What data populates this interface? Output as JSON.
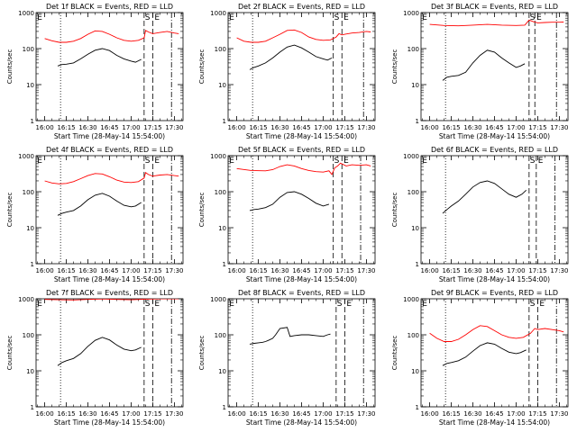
{
  "y_ticks": [
    "1",
    "10",
    "100",
    "1000"
  ],
  "x_ticks": [
    "16:00",
    "16:15",
    "16:30",
    "16:45",
    "17:00",
    "17:15",
    "17:30"
  ],
  "letters": [
    "E",
    "S",
    "E"
  ],
  "chart_data": [
    {
      "type": "line",
      "title": "Det 1f BLACK = Events, RED = LLD",
      "xlabel": "Start Time (28-May-14 15:54:00)",
      "ylabel": "Counts/sec",
      "x_unit": "minutes after 16:00",
      "xlim": [
        -6,
        96
      ],
      "ylim": [
        1,
        1000
      ],
      "y_scale": "log",
      "event_lines": [
        {
          "style": "dotted",
          "x": 11
        },
        {
          "style": "dashed",
          "x": 69
        },
        {
          "style": "dashed",
          "x": 75
        },
        {
          "style": "dashdot",
          "x": 88
        }
      ],
      "series": [
        {
          "color": "#ff0000",
          "x": [
            0,
            5,
            10,
            15,
            20,
            25,
            30,
            35,
            40,
            45,
            50,
            55,
            60,
            65,
            69,
            70,
            72,
            75,
            80,
            85,
            90,
            93
          ],
          "y": [
            190,
            165,
            150,
            150,
            160,
            190,
            250,
            310,
            300,
            250,
            200,
            170,
            160,
            170,
            200,
            320,
            290,
            260,
            280,
            300,
            270,
            260
          ]
        },
        {
          "color": "#000000",
          "x": [
            9,
            12,
            15,
            20,
            25,
            30,
            35,
            40,
            45,
            50,
            55,
            60,
            63,
            67
          ],
          "y": [
            33,
            36,
            37,
            40,
            52,
            70,
            90,
            100,
            88,
            65,
            52,
            45,
            42,
            50
          ]
        }
      ]
    },
    {
      "type": "line",
      "title": "Det 2f BLACK = Events, RED = LLD",
      "xlabel": "Start Time (28-May-14 15:54:00)",
      "ylabel": "Counts/sec",
      "x_unit": "minutes after 16:00",
      "xlim": [
        -6,
        96
      ],
      "ylim": [
        1,
        1000
      ],
      "y_scale": "log",
      "event_lines": [
        {
          "style": "dotted",
          "x": 11
        },
        {
          "style": "dashed",
          "x": 67
        },
        {
          "style": "dashed",
          "x": 73
        },
        {
          "style": "dashdot",
          "x": 88
        }
      ],
      "series": [
        {
          "color": "#ff0000",
          "x": [
            0,
            5,
            10,
            15,
            20,
            25,
            30,
            35,
            40,
            45,
            50,
            55,
            60,
            65,
            69,
            71,
            73,
            75,
            80,
            85,
            90,
            93
          ],
          "y": [
            200,
            160,
            150,
            150,
            160,
            200,
            250,
            320,
            330,
            280,
            210,
            180,
            170,
            175,
            210,
            260,
            240,
            250,
            270,
            280,
            300,
            290
          ]
        },
        {
          "color": "#000000",
          "x": [
            9,
            12,
            15,
            20,
            25,
            30,
            35,
            40,
            45,
            50,
            55,
            60,
            63,
            66
          ],
          "y": [
            26,
            30,
            33,
            40,
            55,
            80,
            110,
            125,
            105,
            80,
            60,
            52,
            48,
            55
          ]
        }
      ]
    },
    {
      "type": "line",
      "title": "Det 3f BLACK = Events, RED = LLD",
      "xlabel": "Start Time (28-May-14 15:54:00)",
      "ylabel": "Counts/sec",
      "x_unit": "minutes after 16:00",
      "xlim": [
        -6,
        96
      ],
      "ylim": [
        1,
        1000
      ],
      "y_scale": "log",
      "event_lines": [
        {
          "style": "dotted",
          "x": 11
        },
        {
          "style": "dashed",
          "x": 69
        },
        {
          "style": "dashed",
          "x": 73
        },
        {
          "style": "dashdot",
          "x": 88
        }
      ],
      "series": [
        {
          "color": "#ff0000",
          "x": [
            0,
            10,
            20,
            30,
            40,
            50,
            60,
            66,
            69,
            72,
            75,
            80,
            85,
            90,
            93
          ],
          "y": [
            470,
            440,
            430,
            450,
            470,
            450,
            440,
            450,
            620,
            560,
            520,
            530,
            540,
            540,
            545
          ]
        },
        {
          "color": "#000000",
          "x": [
            9,
            12,
            15,
            20,
            25,
            30,
            35,
            40,
            45,
            50,
            55,
            60,
            63,
            66
          ],
          "y": [
            13,
            16,
            17,
            18,
            22,
            40,
            65,
            90,
            80,
            55,
            40,
            30,
            33,
            38
          ]
        }
      ]
    },
    {
      "type": "line",
      "title": "Det 4f BLACK = Events, RED = LLD",
      "xlabel": "Start Time (28-May-14 15:54:00)",
      "ylabel": "Counts/sec",
      "x_unit": "minutes after 16:00",
      "xlim": [
        -6,
        96
      ],
      "ylim": [
        1,
        1000
      ],
      "y_scale": "log",
      "event_lines": [
        {
          "style": "dotted",
          "x": 11
        },
        {
          "style": "dashed",
          "x": 69
        },
        {
          "style": "dashed",
          "x": 75
        },
        {
          "style": "dashdot",
          "x": 88
        }
      ],
      "series": [
        {
          "color": "#ff0000",
          "x": [
            0,
            5,
            10,
            15,
            20,
            25,
            30,
            35,
            40,
            45,
            50,
            55,
            60,
            65,
            69,
            70,
            72,
            75,
            80,
            85,
            90,
            93
          ],
          "y": [
            200,
            175,
            165,
            170,
            190,
            230,
            280,
            320,
            310,
            260,
            210,
            185,
            180,
            190,
            240,
            340,
            300,
            270,
            290,
            300,
            280,
            270
          ]
        },
        {
          "color": "#000000",
          "x": [
            9,
            12,
            15,
            20,
            25,
            30,
            35,
            40,
            45,
            50,
            55,
            60,
            63,
            67
          ],
          "y": [
            22,
            25,
            27,
            30,
            40,
            60,
            80,
            90,
            75,
            55,
            42,
            38,
            40,
            50
          ]
        }
      ]
    },
    {
      "type": "line",
      "title": "Det 5f BLACK = Events, RED = LLD",
      "xlabel": "Start Time (28-May-14 15:54:00)",
      "ylabel": "Counts/sec",
      "x_unit": "minutes after 16:00",
      "xlim": [
        -6,
        96
      ],
      "ylim": [
        1,
        1000
      ],
      "y_scale": "log",
      "event_lines": [
        {
          "style": "dotted",
          "x": 11
        },
        {
          "style": "dashed",
          "x": 67
        },
        {
          "style": "dashed",
          "x": 73
        },
        {
          "style": "dashdot",
          "x": 86
        }
      ],
      "series": [
        {
          "color": "#ff0000",
          "x": [
            0,
            10,
            20,
            25,
            30,
            35,
            40,
            45,
            50,
            55,
            60,
            64,
            66,
            68,
            70,
            72,
            76,
            80,
            85,
            90,
            93
          ],
          "y": [
            440,
            390,
            380,
            410,
            500,
            560,
            520,
            440,
            390,
            360,
            350,
            380,
            300,
            460,
            520,
            620,
            520,
            560,
            540,
            560,
            520
          ]
        },
        {
          "color": "#000000",
          "x": [
            9,
            12,
            15,
            20,
            25,
            30,
            35,
            40,
            45,
            50,
            55,
            60,
            64
          ],
          "y": [
            30,
            32,
            33,
            36,
            45,
            70,
            95,
            100,
            85,
            65,
            48,
            40,
            45
          ]
        }
      ]
    },
    {
      "type": "line",
      "title": "Det 6f BLACK = Events, RED = LLD",
      "xlabel": "Start Time (28-May-14 15:54:00)",
      "ylabel": "Counts/sec",
      "x_unit": "minutes after 16:00",
      "xlim": [
        -6,
        96
      ],
      "ylim": [
        1,
        1000
      ],
      "y_scale": "log",
      "event_lines": [
        {
          "style": "dotted",
          "x": 11
        },
        {
          "style": "dashed",
          "x": 69
        },
        {
          "style": "dashed",
          "x": 74
        },
        {
          "style": "dashdot",
          "x": 87
        }
      ],
      "series": [
        {
          "color": "#000000",
          "x": [
            9,
            12,
            15,
            20,
            25,
            30,
            35,
            40,
            45,
            50,
            55,
            60,
            64,
            67
          ],
          "y": [
            25,
            32,
            40,
            55,
            85,
            135,
            180,
            200,
            170,
            120,
            85,
            70,
            85,
            110
          ]
        }
      ]
    },
    {
      "type": "line",
      "title": "Det 7f BLACK = Events, RED = LLD",
      "xlabel": "Start Time (28-May-14 15:54:00)",
      "ylabel": "Counts/sec",
      "x_unit": "minutes after 16:00",
      "xlim": [
        -6,
        96
      ],
      "ylim": [
        1,
        1000
      ],
      "y_scale": "log",
      "event_lines": [
        {
          "style": "dotted",
          "x": 11
        },
        {
          "style": "dashed",
          "x": 69
        },
        {
          "style": "dashed",
          "x": 75
        },
        {
          "style": "dashdot",
          "x": 88
        }
      ],
      "series": [
        {
          "color": "#ff0000",
          "x": [
            0,
            10,
            20,
            30,
            40,
            50,
            60,
            70,
            80,
            90,
            93
          ],
          "y": [
            960,
            940,
            930,
            960,
            990,
            960,
            940,
            980,
            1000,
            1000,
            1000
          ]
        },
        {
          "color": "#000000",
          "x": [
            9,
            12,
            15,
            20,
            25,
            30,
            35,
            40,
            45,
            50,
            55,
            60,
            63,
            67
          ],
          "y": [
            14,
            17,
            19,
            22,
            30,
            48,
            70,
            85,
            72,
            52,
            40,
            36,
            38,
            45
          ]
        }
      ]
    },
    {
      "type": "line",
      "title": "Det 8f BLACK = Events, RED = LLD",
      "xlabel": "Start Time (28-May-14 15:54:00)",
      "ylabel": "Counts/sec",
      "x_unit": "minutes after 16:00",
      "xlim": [
        -6,
        96
      ],
      "ylim": [
        1,
        1000
      ],
      "y_scale": "log",
      "event_lines": [
        {
          "style": "dotted",
          "x": 11
        },
        {
          "style": "dashed",
          "x": 69
        },
        {
          "style": "dashed",
          "x": 75
        },
        {
          "style": "dashdot",
          "x": 88
        }
      ],
      "series": [
        {
          "color": "#000000",
          "x": [
            9,
            12,
            15,
            18,
            20,
            22,
            25,
            27,
            30,
            35,
            37,
            40,
            45,
            50,
            55,
            60,
            63,
            65
          ],
          "y": [
            55,
            58,
            60,
            62,
            65,
            70,
            80,
            100,
            150,
            160,
            90,
            95,
            100,
            100,
            95,
            90,
            100,
            105
          ]
        }
      ]
    },
    {
      "type": "line",
      "title": "Det 9f BLACK = Events, RED = LLD",
      "xlabel": "Start Time (28-May-14 15:54:00)",
      "ylabel": "Counts/sec",
      "x_unit": "minutes after 16:00",
      "xlim": [
        -6,
        96
      ],
      "ylim": [
        1,
        1000
      ],
      "y_scale": "log",
      "event_lines": [
        {
          "style": "dotted",
          "x": 11
        },
        {
          "style": "dashed",
          "x": 69
        },
        {
          "style": "dashed",
          "x": 75
        },
        {
          "style": "dashdot",
          "x": 88
        }
      ],
      "series": [
        {
          "color": "#ff0000",
          "x": [
            0,
            5,
            10,
            15,
            20,
            25,
            30,
            35,
            40,
            45,
            50,
            55,
            60,
            65,
            70,
            73,
            75,
            80,
            85,
            90,
            93
          ],
          "y": [
            110,
            80,
            65,
            65,
            75,
            100,
            140,
            180,
            170,
            130,
            100,
            85,
            80,
            85,
            110,
            150,
            140,
            150,
            140,
            130,
            120
          ]
        },
        {
          "color": "#000000",
          "x": [
            9,
            12,
            15,
            20,
            25,
            30,
            35,
            40,
            45,
            50,
            55,
            60,
            63,
            67
          ],
          "y": [
            14,
            16,
            17,
            19,
            24,
            35,
            50,
            60,
            55,
            42,
            33,
            30,
            32,
            38
          ]
        }
      ]
    }
  ]
}
